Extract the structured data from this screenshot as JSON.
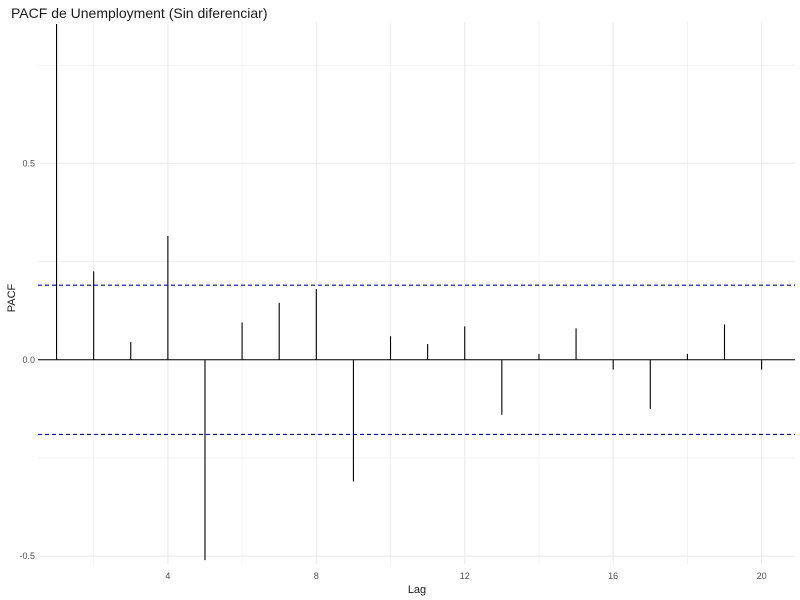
{
  "chart_data": {
    "type": "bar",
    "title": "PACF de Unemployment (Sin diferenciar)",
    "xlabel": "Lag",
    "ylabel": "PACF",
    "xlim": [
      0.5,
      20.9
    ],
    "ylim": [
      -0.52,
      0.86
    ],
    "x_ticks": [
      4,
      8,
      12,
      16,
      20
    ],
    "y_ticks": [
      -0.5,
      0.0,
      0.5
    ],
    "y_tick_labels": [
      "-0.5",
      "0.0",
      "0.5"
    ],
    "grid": true,
    "zero_line": true,
    "confidence_bounds": [
      0.19,
      -0.19
    ],
    "lags": [
      1,
      2,
      3,
      4,
      5,
      6,
      7,
      8,
      9,
      10,
      11,
      12,
      13,
      14,
      15,
      16,
      17,
      18,
      19,
      20
    ],
    "values": [
      0.855,
      0.225,
      0.045,
      0.315,
      -0.51,
      0.095,
      0.145,
      0.18,
      -0.31,
      0.06,
      0.04,
      0.085,
      -0.14,
      0.015,
      0.08,
      -0.025,
      -0.125,
      0.015,
      0.09,
      -0.025
    ],
    "colors": {
      "bars": "#000000",
      "confidence": "#0000cc",
      "grid": "#ebebeb"
    }
  }
}
